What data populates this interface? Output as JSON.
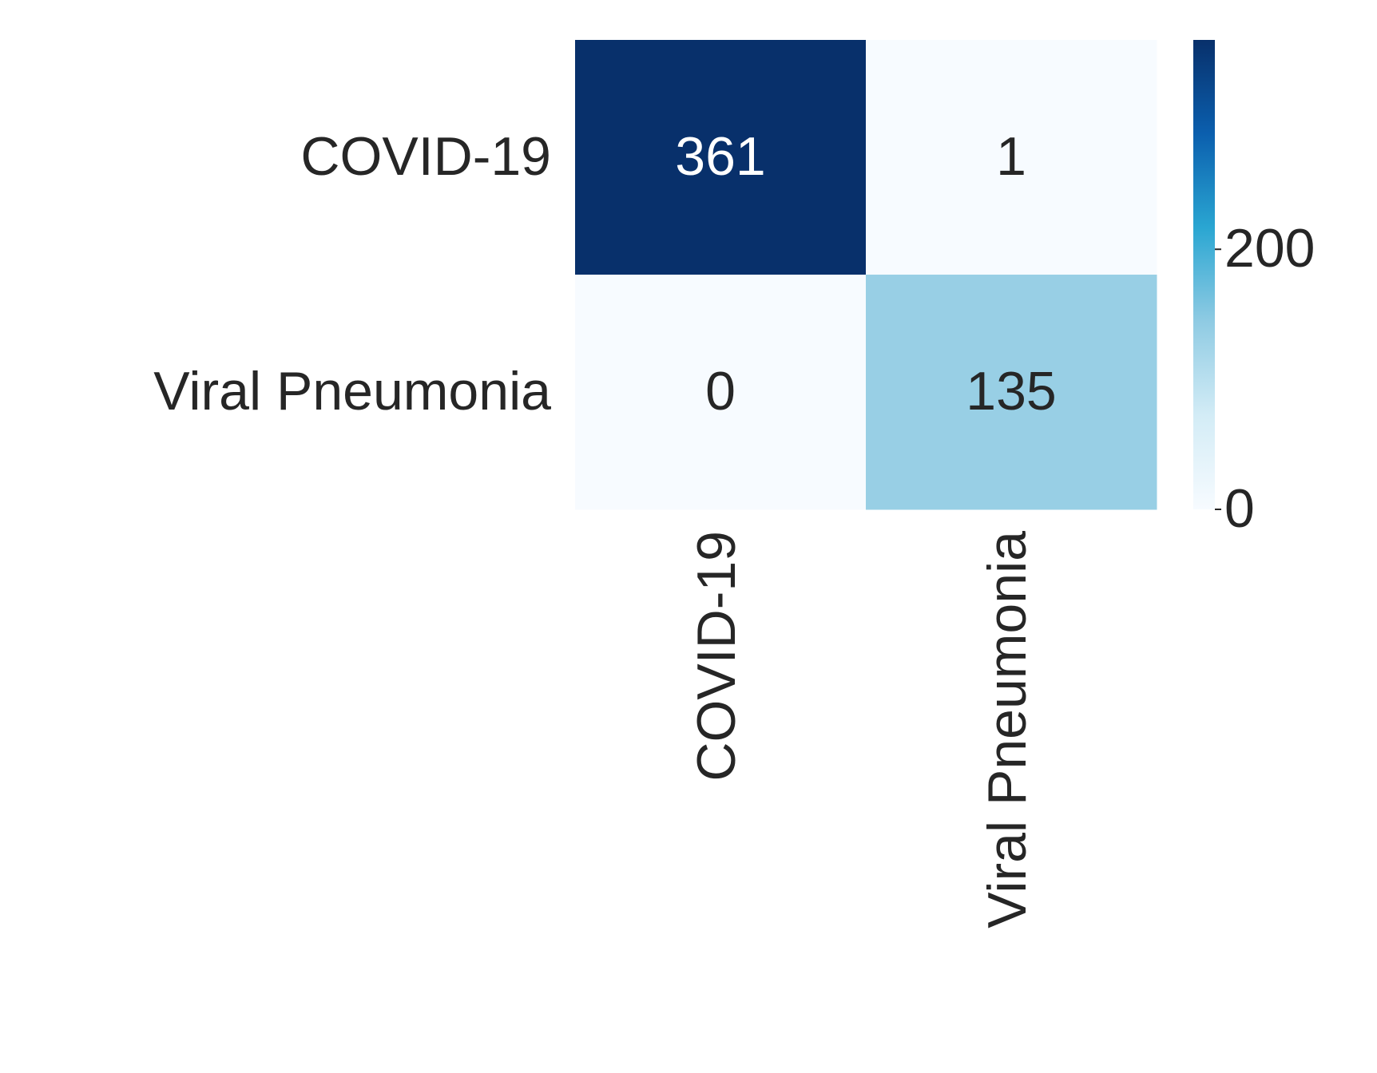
{
  "chart_data": {
    "type": "heatmap",
    "rows": [
      "COVID-19",
      "Viral Pneumonia"
    ],
    "columns": [
      "COVID-19",
      "Viral Pneumonia"
    ],
    "values": [
      [
        361,
        1
      ],
      [
        0,
        135
      ]
    ],
    "colors": [
      "#f7fbff",
      "#d3ecf6",
      "#8fcbe3",
      "#2aa6d2",
      "#0b5fae",
      "#08306b"
    ],
    "clim": [
      0,
      361
    ],
    "cticks": [
      0,
      200
    ]
  }
}
